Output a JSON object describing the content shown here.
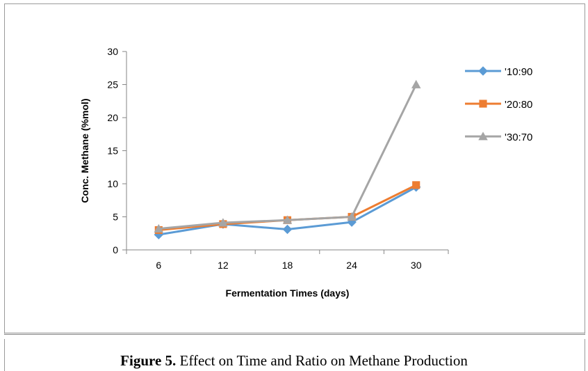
{
  "chart_data": {
    "type": "line",
    "xlabel": "Fermentation Times (days)",
    "ylabel": "Conc. Methane (%mol)",
    "categories": [
      "6",
      "12",
      "18",
      "24",
      "30"
    ],
    "ylim": [
      0,
      30
    ],
    "yticks": [
      0,
      5,
      10,
      15,
      20,
      25,
      30
    ],
    "grid": false,
    "legend_position": "right",
    "series": [
      {
        "name": "'10:90",
        "color": "#5b9bd5",
        "marker": "diamond",
        "values": [
          2.3,
          3.9,
          3.1,
          4.2,
          9.5
        ]
      },
      {
        "name": "'20:80",
        "color": "#ed7d31",
        "marker": "square",
        "values": [
          3.0,
          3.9,
          4.5,
          5.0,
          9.8
        ]
      },
      {
        "name": "'30:70",
        "color": "#a5a5a5",
        "marker": "triangle",
        "values": [
          3.2,
          4.1,
          4.5,
          5.0,
          25.0
        ]
      }
    ]
  },
  "caption": {
    "label": "Figure 5.",
    "text": " Effect on Time and Ratio on Methane Production"
  }
}
